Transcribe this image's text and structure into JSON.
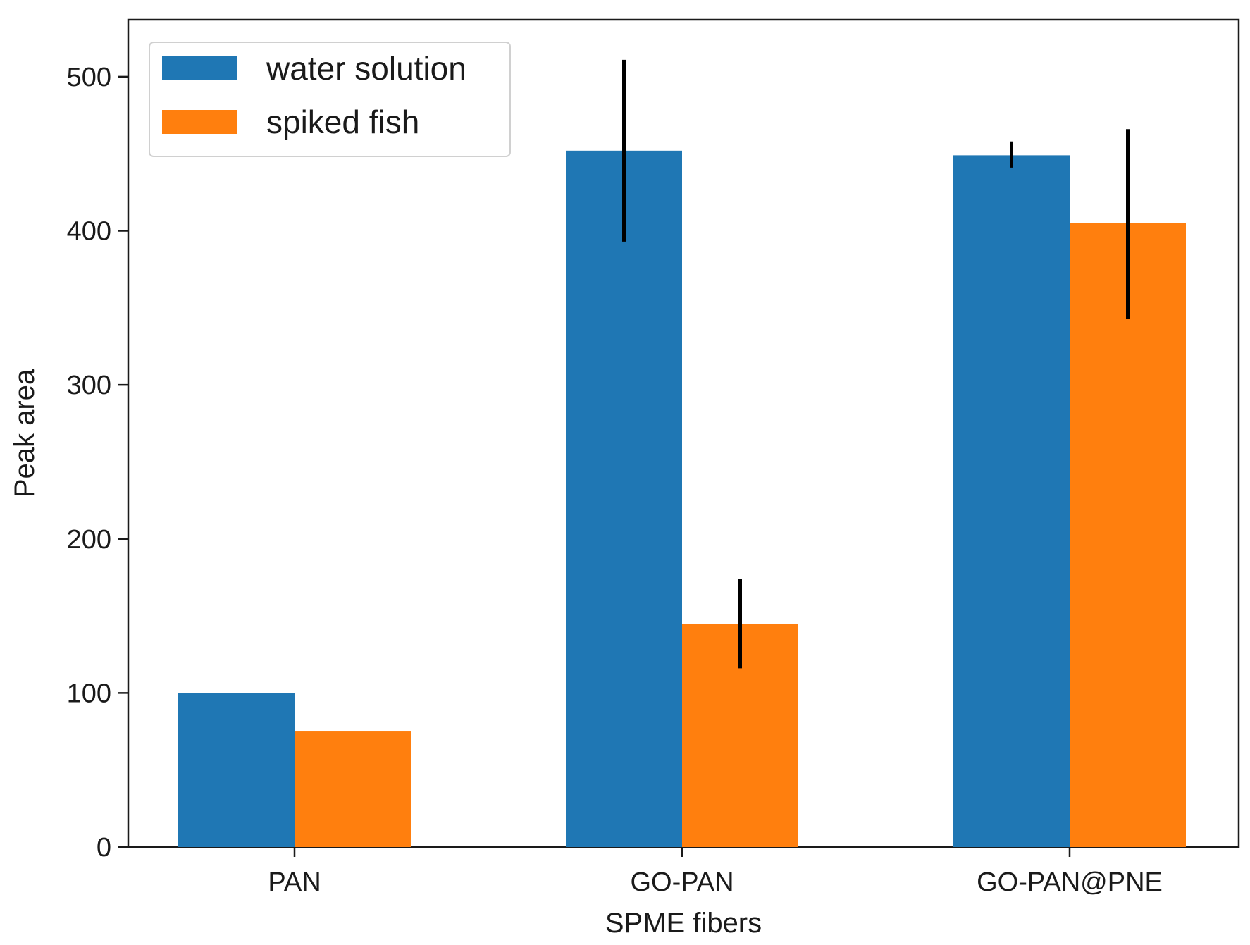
{
  "chart_data": {
    "type": "bar",
    "xlabel": "SPME fibers",
    "ylabel": "Peak area",
    "ylim": [
      0,
      537
    ],
    "yticks": [
      0,
      100,
      200,
      300,
      400,
      500
    ],
    "categories": [
      "PAN",
      "GO-PAN",
      "GO-PAN@PNE"
    ],
    "series": [
      {
        "name": "water solution",
        "color": "#1f77b4",
        "values": [
          100,
          452,
          449
        ],
        "error_low": [
          null,
          393,
          441
        ],
        "error_high": [
          null,
          511,
          458
        ]
      },
      {
        "name": "spiked fish",
        "color": "#ff7f0e",
        "values": [
          75,
          145,
          405
        ],
        "error_low": [
          null,
          116,
          343
        ],
        "error_high": [
          null,
          174,
          466
        ]
      }
    ],
    "legend_position": "top-left",
    "grid": false
  }
}
